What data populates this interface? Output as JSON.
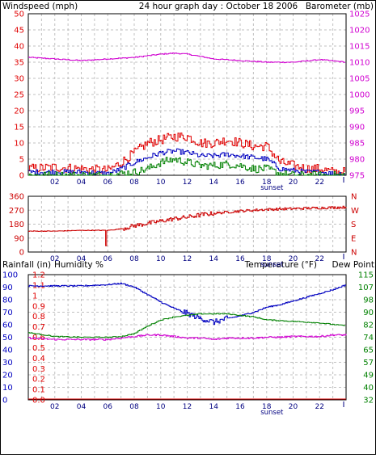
{
  "header": {
    "windspeed_label": "Windspeed (mph)",
    "title": "24 hour graph day : October 18 2006",
    "barometer_label": "Barometer (mb)"
  },
  "colors": {
    "wind_gust": "#e00000",
    "wind_avg": "#0000c0",
    "wind_low": "#008000",
    "barometer": "#d000d0",
    "direction": "#cc0000",
    "humidity": "#0000c0",
    "temperature": "#008000",
    "dewpoint": "#d000d0",
    "rainfall": "#e00000",
    "grid": "#c0c0c0",
    "frame": "#000000"
  },
  "chart_data": [
    {
      "id": "wind-barometer",
      "type": "line",
      "title": "24 hour graph day : October 18 2006",
      "ylabel": "Windspeed (mph)",
      "y2label": "Barometer (mb)",
      "ylim": [
        0,
        50
      ],
      "y2lim": [
        975,
        1025
      ],
      "y_ticks": [
        "50",
        "45",
        "40",
        "35",
        "30",
        "25",
        "20",
        "15",
        "10",
        "5",
        "0"
      ],
      "y2_ticks": [
        "1025",
        "1020",
        "1015",
        "1010",
        "1005",
        "1000",
        "995",
        "990",
        "985",
        "980",
        "975"
      ],
      "x_ticks": [
        "02",
        "04",
        "06",
        "08",
        "10",
        "12",
        "14",
        "16",
        "18",
        "20",
        "22"
      ],
      "x_tick_values": [
        2,
        4,
        6,
        8,
        10,
        12,
        14,
        16,
        18,
        20,
        22
      ],
      "annotation": "sunset",
      "annotation_hour": 18.4,
      "grid": true,
      "series": [
        {
          "name": "Barometer (mb)",
          "axis": "right",
          "x": [
            0,
            2,
            4,
            6,
            8,
            10,
            11,
            12,
            14,
            16,
            18,
            20,
            22,
            24
          ],
          "values": [
            1011.5,
            1011,
            1010.5,
            1011,
            1011.5,
            1012.5,
            1012.8,
            1012.5,
            1011,
            1010.5,
            1010,
            1010,
            1010.8,
            1010
          ]
        },
        {
          "axis": "left",
          "x": [
            0,
            2,
            4,
            6,
            7,
            8,
            9,
            10,
            11,
            12,
            13,
            14,
            15,
            16,
            17,
            18,
            19,
            20,
            21,
            22,
            23,
            24
          ],
          "values": [
            2,
            2.5,
            2,
            1.5,
            4,
            7,
            10,
            11,
            12,
            12,
            10,
            10,
            11,
            10,
            9,
            9,
            4,
            3,
            2,
            2,
            1,
            1
          ]
        },
        {
          "axis": "left",
          "x": [
            0,
            2,
            4,
            6,
            7,
            8,
            9,
            10,
            11,
            12,
            13,
            14,
            15,
            16,
            17,
            18,
            19,
            20,
            21,
            22,
            23,
            24
          ],
          "values": [
            1,
            1,
            1,
            0.5,
            2,
            4,
            5.5,
            7,
            7.5,
            7,
            6,
            6,
            6.5,
            6,
            5.5,
            5,
            2,
            1.5,
            1,
            1,
            0.5,
            0.5
          ]
        },
        {
          "axis": "left",
          "x": [
            0,
            2,
            4,
            6,
            7,
            8,
            9,
            10,
            11,
            12,
            13,
            14,
            15,
            16,
            17,
            18,
            19,
            20,
            21,
            22,
            23,
            24
          ],
          "values": [
            0,
            0,
            0,
            0,
            0.5,
            1,
            2,
            4,
            5,
            4,
            3,
            3,
            3.5,
            3,
            2,
            2,
            0.5,
            0,
            0,
            0,
            0,
            0
          ]
        }
      ]
    },
    {
      "id": "wind-direction",
      "type": "line",
      "ylim": [
        0,
        360
      ],
      "y_ticks": [
        "360",
        "270",
        "180",
        "90",
        "0"
      ],
      "y2_ticks": [
        "N",
        "W",
        "S",
        "E",
        "N"
      ],
      "x_ticks": [
        "02",
        "04",
        "06",
        "08",
        "10",
        "12",
        "14",
        "16",
        "18",
        "20",
        "22"
      ],
      "x_tick_values": [
        2,
        4,
        6,
        8,
        10,
        12,
        14,
        16,
        18,
        20,
        22
      ],
      "annotation": "sunset",
      "annotation_hour": 18.4,
      "grid": true,
      "series": [
        {
          "x": [
            0,
            2,
            4,
            6,
            7,
            8,
            9,
            10,
            11,
            12,
            13,
            14,
            16,
            18,
            20,
            22,
            24
          ],
          "values": [
            135,
            135,
            140,
            140,
            150,
            170,
            185,
            200,
            215,
            225,
            240,
            250,
            265,
            275,
            280,
            285,
            290
          ]
        }
      ]
    },
    {
      "id": "rain-humidity-temperature",
      "type": "line",
      "ylabel": "Rainfall (in)",
      "ylabel2": "Humidity %",
      "y2label": "Temperature (°F)",
      "y2label2": "Dew Point",
      "humidity_ylim": [
        0,
        100
      ],
      "rain_ylim": [
        0,
        1.2
      ],
      "temp_ylim": [
        32,
        115
      ],
      "y_humidity_ticks": [
        "100",
        "90",
        "80",
        "70",
        "60",
        "50",
        "40",
        "30",
        "20",
        "10",
        "0"
      ],
      "y_rain_ticks": [
        "1.2",
        "1.1",
        "1",
        "0.9",
        "0.8",
        "0.7",
        "0.6",
        "0.5",
        "0.4",
        "0.3",
        "0.2",
        "0.1",
        "0.0"
      ],
      "y2_ticks": [
        "115",
        "107",
        "98",
        "90",
        "82",
        "74",
        "65",
        "57",
        "49",
        "40",
        "32"
      ],
      "x_ticks": [
        "02",
        "04",
        "06",
        "08",
        "10",
        "12",
        "14",
        "16",
        "18",
        "20",
        "22"
      ],
      "x_tick_values": [
        2,
        4,
        6,
        8,
        10,
        12,
        14,
        16,
        18,
        20,
        22
      ],
      "annotation": "sunset",
      "annotation_hour": 18.4,
      "grid": true,
      "series": [
        {
          "name": "Humidity %",
          "axis": "humidity",
          "x": [
            0,
            2,
            4,
            6,
            7,
            8,
            9,
            10,
            11,
            12,
            13,
            14,
            15,
            16,
            17,
            18,
            19,
            20,
            21,
            22,
            23,
            24
          ],
          "values": [
            91,
            91,
            91,
            92,
            93,
            90,
            84,
            78,
            73,
            69,
            65,
            62,
            65,
            67,
            70,
            74,
            76,
            79,
            82,
            85,
            88,
            92
          ]
        },
        {
          "name": "Temperature (°F)",
          "axis": "temp",
          "x": [
            0,
            2,
            4,
            6,
            7,
            8,
            9,
            10,
            11,
            12,
            13,
            14,
            15,
            16,
            17,
            18,
            19,
            20,
            21,
            22,
            23,
            24
          ],
          "values": [
            76.5,
            74,
            73.5,
            73.5,
            74,
            76,
            81,
            85,
            87,
            88,
            89,
            89,
            89,
            88,
            87,
            85,
            84.5,
            84,
            83.5,
            83,
            82,
            81
          ]
        },
        {
          "name": "Dew Point",
          "axis": "temp",
          "x": [
            0,
            2,
            4,
            6,
            7,
            8,
            9,
            10,
            11,
            12,
            13,
            14,
            15,
            16,
            17,
            18,
            19,
            20,
            21,
            22,
            23,
            24
          ],
          "values": [
            73,
            72,
            72,
            72,
            73,
            74,
            75,
            75,
            74,
            73,
            73,
            72,
            73,
            73,
            73,
            73.5,
            73.5,
            74,
            74,
            74,
            75,
            75
          ]
        },
        {
          "name": "Rainfall (in)",
          "axis": "rain",
          "x": [
            0,
            24
          ],
          "values": [
            0,
            0
          ]
        }
      ]
    }
  ]
}
